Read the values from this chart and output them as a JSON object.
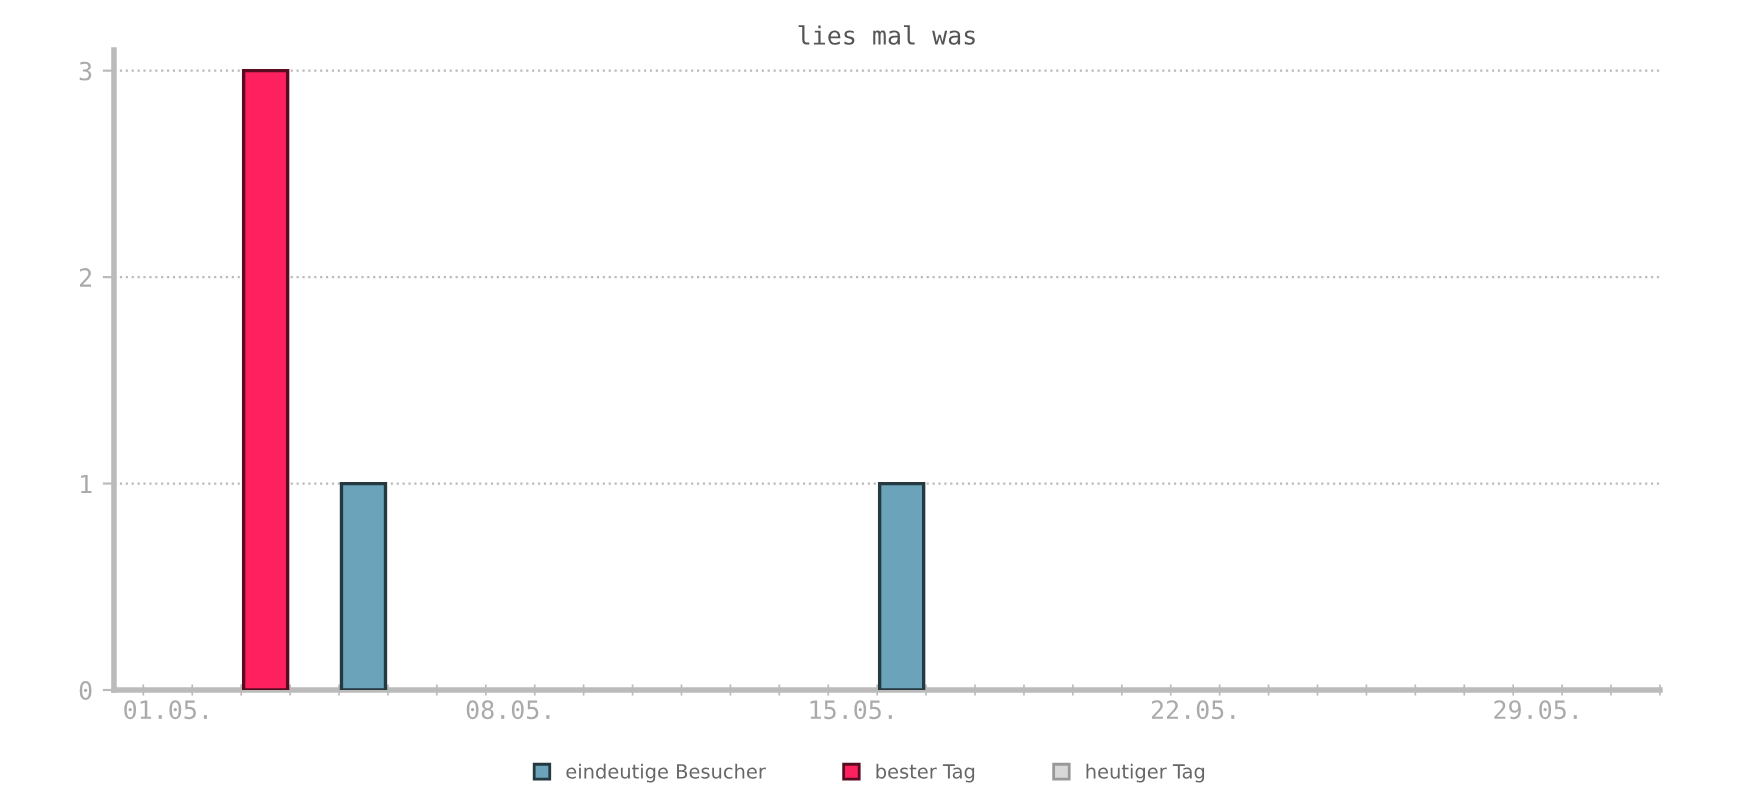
{
  "chart_data": {
    "type": "bar",
    "title": "lies mal was",
    "categories": [
      "01.05.",
      null,
      null,
      null,
      null,
      null,
      null,
      "08.05.",
      null,
      null,
      null,
      null,
      null,
      null,
      "15.05.",
      null,
      null,
      null,
      null,
      null,
      null,
      "22.05.",
      null,
      null,
      null,
      null,
      null,
      null,
      "29.05.",
      null,
      null
    ],
    "series": [
      {
        "name": "eindeutige Besucher",
        "color": "#6aa3ba",
        "values": [
          null,
          null,
          null,
          null,
          1,
          null,
          null,
          null,
          null,
          null,
          null,
          null,
          null,
          null,
          null,
          1,
          null,
          null,
          null,
          null,
          null,
          null,
          null,
          null,
          null,
          null,
          null,
          null,
          null,
          null,
          null
        ]
      },
      {
        "name": "bester Tag",
        "color": "#ff2060",
        "values": [
          null,
          null,
          3,
          null,
          null,
          null,
          null,
          null,
          null,
          null,
          null,
          null,
          null,
          null,
          null,
          null,
          null,
          null,
          null,
          null,
          null,
          null,
          null,
          null,
          null,
          null,
          null,
          null,
          null,
          null,
          null
        ]
      },
      {
        "name": "heutiger Tag",
        "color": "#d8d8d8",
        "values": [
          null,
          null,
          null,
          null,
          null,
          null,
          null,
          null,
          null,
          null,
          null,
          null,
          null,
          null,
          null,
          null,
          null,
          null,
          null,
          null,
          null,
          null,
          null,
          null,
          null,
          null,
          null,
          null,
          null,
          null,
          null
        ]
      }
    ],
    "ylim": [
      0,
      3.1
    ],
    "yticks": [
      0,
      1,
      2,
      3
    ],
    "grid": "y",
    "legend": "bottom"
  }
}
